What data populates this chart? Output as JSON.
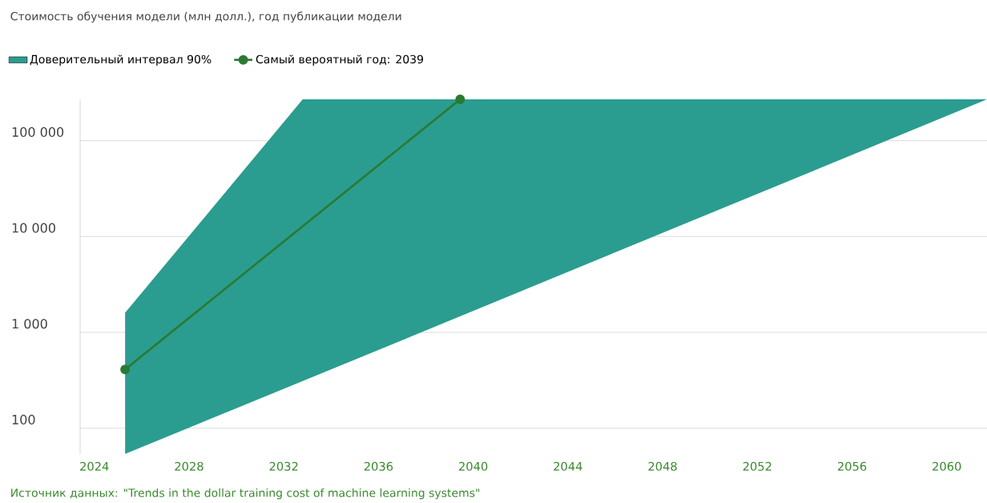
{
  "chart_data": {
    "type": "line",
    "title": "Стоимость обучения модели (млн долл.), год публикации модели",
    "annotations": [
      "Источник данных: \"Trends in the dollar training cost of machine learning systems\""
    ],
    "series": [
      {
        "name": "Доверительный интервал 90%",
        "type": "area",
        "color": "#2a9d90",
        "x": [
          2025.3,
          2032.8,
          2061.7
        ],
        "values": [
          null,
          null,
          null
        ],
        "lower": [
          54,
          310,
          270000
        ],
        "upper": [
          1600,
          270000,
          270000
        ]
      },
      {
        "name": "Самый вероятный год: 2039",
        "type": "line",
        "color": "#2b7a32",
        "x": [
          2025.3,
          2039.45
        ],
        "values": [
          410,
          270000
        ],
        "marker": "circle"
      }
    ],
    "log": "y",
    "xlim": [
      2023.4,
      2061.7
    ],
    "ylim": [
      54,
      270000
    ],
    "xticks": [
      2024,
      2028,
      2032,
      2036,
      2040,
      2044,
      2048,
      2052,
      2056,
      2060
    ],
    "yticks": [
      100,
      {
        "value": 1000,
        "label": "1 000"
      },
      {
        "value": 10000,
        "label": "10 000"
      },
      {
        "value": 100000,
        "label": "100 000"
      }
    ],
    "grid": "y",
    "legend": "top left",
    "line_style": "solid"
  }
}
